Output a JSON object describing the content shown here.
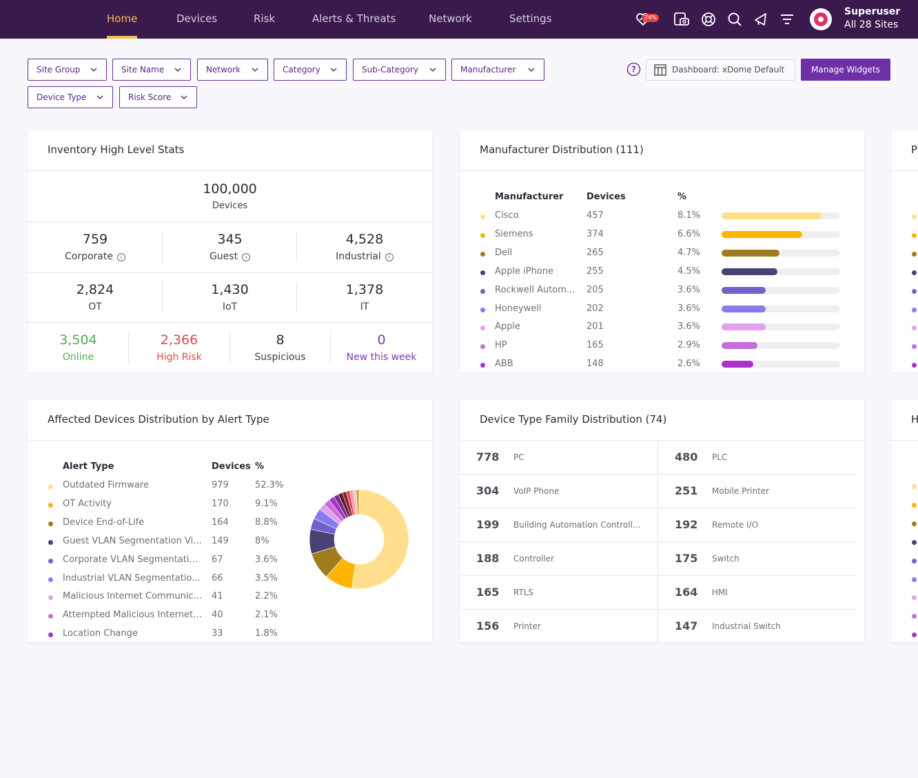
{
  "nav": {
    "items": [
      {
        "label": "Home",
        "active": true
      },
      {
        "label": "Devices",
        "active": false
      },
      {
        "label": "Risk",
        "active": false
      },
      {
        "label": "Alerts & Threats",
        "active": false
      },
      {
        "label": "Network",
        "active": false
      },
      {
        "label": "Settings",
        "active": false
      }
    ],
    "badge": "74%",
    "icons": [
      "alert-heart-icon",
      "camera-device-icon",
      "support-lifebuoy-icon",
      "search-icon",
      "announcement-icon",
      "filter-icon"
    ],
    "user": {
      "name": "Superuser",
      "sites": "All 28 Sites"
    }
  },
  "filters": [
    "Site Group",
    "Site Name",
    "Network",
    "Category",
    "Sub-Category",
    "Manufacturer",
    "Device Type",
    "Risk Score"
  ],
  "toolbar": {
    "dashboard_label": "Dashboard: xDome Default",
    "manage_label": "Manage Widgets"
  },
  "inventory": {
    "title": "Inventory High Level Stats",
    "total": {
      "value": "100,000",
      "label": "Devices"
    },
    "row1": [
      {
        "value": "759",
        "label": "Corporate"
      },
      {
        "value": "345",
        "label": "Guest"
      },
      {
        "value": "4,528",
        "label": "Industrial"
      }
    ],
    "row2": [
      {
        "value": "2,824",
        "label": "OT"
      },
      {
        "value": "1,430",
        "label": "IoT"
      },
      {
        "value": "1,378",
        "label": "IT"
      }
    ],
    "row3": [
      {
        "value": "3,504",
        "label": "Online",
        "color": "#4caf50"
      },
      {
        "value": "2,366",
        "label": "High Risk",
        "color": "#e04848"
      },
      {
        "value": "8",
        "label": "Suspicious",
        "color": "#2a2a36"
      },
      {
        "value": "0",
        "label": "New this week",
        "color": "#7b3aa8"
      }
    ]
  },
  "manufacturer": {
    "title": "Manufacturer Distribution (111)",
    "headers": [
      "Manufacturer",
      "Devices",
      "%"
    ],
    "rows": [
      {
        "name": "Cisco",
        "devices": "457",
        "pct": "8.1%",
        "fill": 0.84,
        "color": "#ffdf8e"
      },
      {
        "name": "Siemens",
        "devices": "374",
        "pct": "6.6%",
        "fill": 0.68,
        "color": "#ffb400"
      },
      {
        "name": "Dell",
        "devices": "265",
        "pct": "4.7%",
        "fill": 0.49,
        "color": "#a17c1f"
      },
      {
        "name": "Apple iPhone",
        "devices": "255",
        "pct": "4.5%",
        "fill": 0.47,
        "color": "#484275"
      },
      {
        "name": "Rockwell Autom...",
        "devices": "205",
        "pct": "3.6%",
        "fill": 0.37,
        "color": "#7161c8"
      },
      {
        "name": "Honeywell",
        "devices": "202",
        "pct": "3.6%",
        "fill": 0.37,
        "color": "#857cf4"
      },
      {
        "name": "Apple",
        "devices": "201",
        "pct": "3.6%",
        "fill": 0.37,
        "color": "#e0a2ea"
      },
      {
        "name": "HP",
        "devices": "165",
        "pct": "2.9%",
        "fill": 0.3,
        "color": "#c86ddd"
      },
      {
        "name": "ABB",
        "devices": "148",
        "pct": "2.6%",
        "fill": 0.27,
        "color": "#a634c6"
      }
    ]
  },
  "alerts": {
    "title": "Affected Devices Distribution by Alert Type",
    "headers": [
      "Alert Type",
      "Devices",
      "%"
    ],
    "rows": [
      {
        "name": "Outdated Firmware",
        "devices": "979",
        "pct": "52.3%",
        "color": "#ffdf8e"
      },
      {
        "name": "OT Activity",
        "devices": "170",
        "pct": "9.1%",
        "color": "#ffb400"
      },
      {
        "name": "Device End-of-Life",
        "devices": "164",
        "pct": "8.8%",
        "color": "#a17c1f"
      },
      {
        "name": "Guest VLAN Segmentation Vi...",
        "devices": "149",
        "pct": "8%",
        "color": "#484275"
      },
      {
        "name": "Corporate VLAN Segmentatio...",
        "devices": "67",
        "pct": "3.6%",
        "color": "#7161c8"
      },
      {
        "name": "Industrial VLAN Segmentatio...",
        "devices": "66",
        "pct": "3.5%",
        "color": "#857cf4"
      },
      {
        "name": "Malicious Internet Communic...",
        "devices": "41",
        "pct": "2.2%",
        "color": "#e0a2ea"
      },
      {
        "name": "Attempted Malicious Internet ...",
        "devices": "40",
        "pct": "2.1%",
        "color": "#c86ddd"
      },
      {
        "name": "Location Change",
        "devices": "33",
        "pct": "1.8%",
        "color": "#a634c6"
      }
    ],
    "donut_extra_slices": [
      {
        "value": 1.6,
        "color": "#7a2b8c"
      },
      {
        "value": 1.4,
        "color": "#5a1a2e"
      },
      {
        "value": 1.3,
        "color": "#8a2035"
      },
      {
        "value": 1.2,
        "color": "#e84a5f"
      },
      {
        "value": 1.1,
        "color": "#f59aa8"
      },
      {
        "value": 1.0,
        "color": "#f8c8a0"
      },
      {
        "value": 0.9,
        "color": "#c9a04a"
      }
    ]
  },
  "device_type": {
    "title": "Device Type Family Distribution (74)",
    "rows": [
      [
        {
          "value": "778",
          "label": "PC"
        },
        {
          "value": "480",
          "label": "PLC"
        }
      ],
      [
        {
          "value": "304",
          "label": "VoIP Phone"
        },
        {
          "value": "251",
          "label": "Mobile Printer"
        }
      ],
      [
        {
          "value": "199",
          "label": "Building Automation Controll..."
        },
        {
          "value": "192",
          "label": "Remote I/O"
        }
      ],
      [
        {
          "value": "188",
          "label": "Controller"
        },
        {
          "value": "175",
          "label": "Switch"
        }
      ],
      [
        {
          "value": "165",
          "label": "RTLS"
        },
        {
          "value": "164",
          "label": "HMI"
        }
      ],
      [
        {
          "value": "156",
          "label": "Printer"
        },
        {
          "value": "147",
          "label": "Industrial Switch"
        }
      ]
    ]
  },
  "partial_cards": {
    "top_title": "P",
    "bottom_title": "H",
    "dot_colors": [
      "#ffdf8e",
      "#ffb400",
      "#a17c1f",
      "#484275",
      "#7161c8",
      "#857cf4",
      "#e0a2ea",
      "#c86ddd",
      "#a634c6"
    ]
  }
}
